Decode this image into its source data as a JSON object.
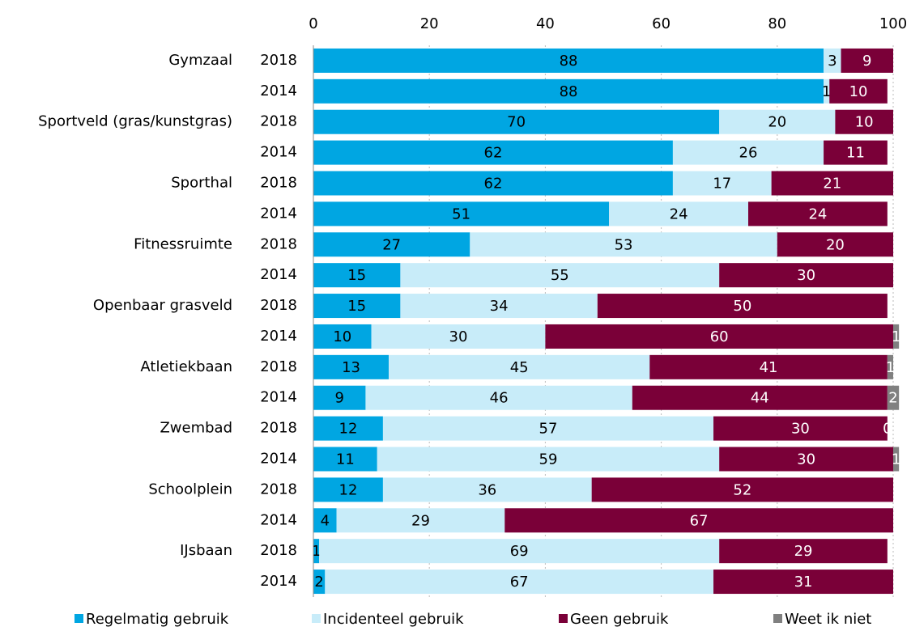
{
  "chart_data": {
    "type": "stacked-barh",
    "groups": [
      "Gymzaal",
      "Sportveld (gras/kunstgras)",
      "Sporthal",
      "Fitnessruimte",
      "Openbaar grasveld",
      "Atletiekbaan",
      "Zwembad",
      "Schoolplein",
      "IJsbaan"
    ],
    "categories": [
      "2018",
      "2014",
      "2018",
      "2014",
      "2018",
      "2014",
      "2018",
      "2014",
      "2018",
      "2014",
      "2018",
      "2014",
      "2018",
      "2014",
      "2018",
      "2014",
      "2018",
      "2014"
    ],
    "series": [
      {
        "name": "Regelmatig gebruik",
        "color": "#00a6e2",
        "label_color": "#000000",
        "values": [
          88,
          88,
          70,
          62,
          62,
          51,
          27,
          15,
          15,
          10,
          13,
          9,
          12,
          11,
          12,
          4,
          1,
          2
        ]
      },
      {
        "name": "Incidenteel gebruik",
        "color": "#c8ecf9",
        "label_color": "#000000",
        "values": [
          3,
          1,
          20,
          26,
          17,
          24,
          53,
          55,
          34,
          30,
          45,
          46,
          57,
          59,
          36,
          29,
          69,
          67
        ]
      },
      {
        "name": "Geen gebruik",
        "color": "#7a0038",
        "label_color": "#ffffff",
        "values": [
          9,
          10,
          10,
          11,
          21,
          24,
          20,
          30,
          50,
          60,
          41,
          44,
          30,
          30,
          52,
          67,
          29,
          31
        ]
      },
      {
        "name": "Weet ik niet",
        "color": "#808080",
        "label_color": "#ffffff",
        "values": [
          null,
          null,
          null,
          null,
          null,
          null,
          null,
          null,
          null,
          1,
          1,
          2,
          0,
          1,
          null,
          null,
          null,
          null
        ]
      }
    ],
    "xlim": [
      0,
      100
    ],
    "xticks": [
      0,
      20,
      40,
      60,
      80,
      100
    ],
    "grid": true,
    "legend": "bottom"
  }
}
